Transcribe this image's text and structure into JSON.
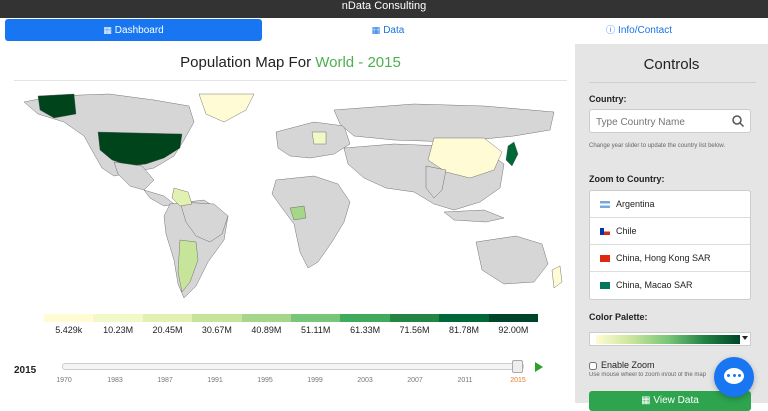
{
  "topbar": {
    "brand": "nData Consulting"
  },
  "tabs": [
    {
      "label": "Dashboard",
      "icon": "map-icon",
      "active": true
    },
    {
      "label": "Data",
      "icon": "table-icon",
      "active": false
    },
    {
      "label": "Info/Contact",
      "icon": "info-icon",
      "active": false
    }
  ],
  "map": {
    "title_prefix": "Population Map For",
    "title_highlight": "World - 2015",
    "legend": {
      "colors": [
        "#fffbd4",
        "#f3f9c6",
        "#e1f1b1",
        "#c6e59a",
        "#a6d68a",
        "#78c679",
        "#41ab5d",
        "#238443",
        "#006837",
        "#004529"
      ],
      "labels": [
        "5.429k",
        "10.23M",
        "20.45M",
        "30.67M",
        "40.89M",
        "51.11M",
        "61.33M",
        "71.56M",
        "81.78M",
        "92.00M"
      ]
    },
    "slider": {
      "year_label": "2015",
      "value": 2015,
      "ticks": [
        "1970",
        "1983",
        "1987",
        "1991",
        "1995",
        "1999",
        "2003",
        "2007",
        "2011",
        "2015"
      ]
    }
  },
  "controls": {
    "title": "Controls",
    "country_label": "Country:",
    "country_placeholder": "Type Country Name",
    "help": "Change year slider to update the country list below.",
    "zoom_label": "Zoom to Country:",
    "countries": [
      {
        "name": "Argentina",
        "flag": "argentina-flag-icon"
      },
      {
        "name": "Chile",
        "flag": "chile-flag-icon"
      },
      {
        "name": "China, Hong Kong SAR",
        "flag": "hong-kong-flag-icon"
      },
      {
        "name": "China, Macao SAR",
        "flag": "macao-flag-icon"
      }
    ],
    "palette_label": "Color Palette:",
    "enable_zoom_label": "Enable Zoom",
    "enable_zoom_checked": false,
    "zoom_help": "Use mouse wheel to zoom in/out of the map",
    "view_data_label": "View Data"
  },
  "chat": {
    "icon": "chat-icon"
  }
}
